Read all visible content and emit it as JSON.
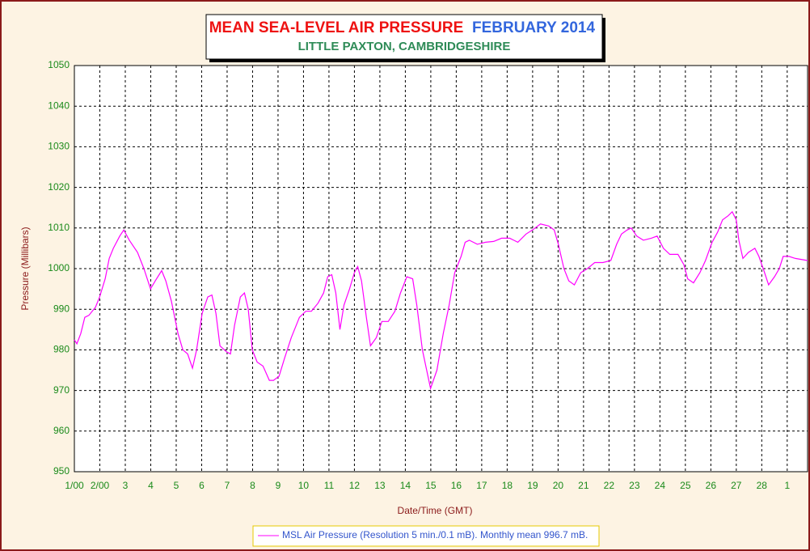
{
  "chart_data": {
    "type": "line",
    "title": "MEAN SEA-LEVEL AIR PRESSURE",
    "title_period": "FEBRUARY 2014",
    "subtitle": "LITTLE PAXTON, CAMBRIDGESHIRE",
    "x_label": "Date/Time (GMT)",
    "y_label": "Pressure (Millibars)",
    "xlim": [
      1,
      29.8
    ],
    "xticks": [
      {
        "value": 1,
        "label": "1/00"
      },
      {
        "value": 2,
        "label": "2/00"
      },
      3,
      4,
      5,
      6,
      7,
      8,
      9,
      10,
      11,
      12,
      13,
      14,
      15,
      16,
      17,
      18,
      19,
      20,
      21,
      22,
      23,
      24,
      25,
      26,
      27,
      28,
      {
        "value": 29,
        "label": "1"
      }
    ],
    "ylim": [
      950,
      1050
    ],
    "yticks": [
      950,
      960,
      970,
      980,
      990,
      1000,
      1010,
      1020,
      1030,
      1040,
      1050
    ],
    "grid": true,
    "legend": "bottom",
    "x": [
      1.0,
      1.1,
      1.25,
      1.41,
      1.57,
      1.83,
      1.99,
      2.21,
      2.37,
      2.53,
      2.78,
      2.94,
      3.16,
      3.48,
      3.73,
      3.99,
      4.18,
      4.43,
      4.59,
      4.81,
      5.07,
      5.26,
      5.45,
      5.64,
      5.8,
      6.02,
      6.24,
      6.4,
      6.56,
      6.72,
      6.98,
      7.13,
      7.29,
      7.52,
      7.68,
      7.83,
      7.99,
      8.18,
      8.41,
      8.66,
      8.82,
      9.04,
      9.26,
      9.52,
      9.84,
      10.09,
      10.31,
      10.57,
      10.79,
      10.95,
      11.11,
      11.27,
      11.43,
      11.59,
      11.81,
      12.0,
      12.13,
      12.28,
      12.47,
      12.63,
      12.86,
      13.08,
      13.33,
      13.59,
      13.81,
      14.06,
      14.29,
      14.45,
      14.67,
      14.99,
      15.24,
      15.49,
      15.72,
      15.94,
      16.19,
      16.35,
      16.51,
      16.83,
      17.15,
      17.47,
      17.78,
      18.1,
      18.42,
      18.74,
      18.99,
      19.31,
      19.63,
      19.85,
      20.01,
      20.23,
      20.42,
      20.64,
      20.89,
      21.15,
      21.44,
      21.76,
      22.07,
      22.3,
      22.49,
      22.71,
      22.87,
      23.09,
      23.35,
      23.66,
      23.89,
      24.14,
      24.39,
      24.71,
      24.94,
      25.09,
      25.32,
      25.57,
      25.79,
      26.05,
      26.27,
      26.46,
      26.68,
      26.84,
      27.0,
      27.1,
      27.26,
      27.48,
      27.73,
      27.89,
      28.11,
      28.27,
      28.5,
      28.69,
      28.84,
      29.07,
      29.32,
      29.8
    ],
    "series": [
      {
        "name": "MSL Air Pressure (Resolution 5 min./0.1 mB). Monthly mean 996.7 mB.",
        "color": "#ff00ff",
        "values": [
          982.5,
          981.5,
          984,
          988,
          988.5,
          990.5,
          993,
          997.5,
          1002.5,
          1005,
          1008,
          1009.5,
          1007,
          1004,
          1000,
          995,
          997,
          999.5,
          997,
          992,
          984,
          980,
          979,
          975.5,
          980,
          989,
          993,
          993.5,
          989,
          981,
          979.5,
          979,
          986,
          993,
          994,
          990,
          980,
          977,
          976,
          972.5,
          972.5,
          973.5,
          978,
          983,
          988,
          989.5,
          989.5,
          991.5,
          994,
          998,
          998.5,
          994,
          985,
          991,
          995,
          999,
          1000.5,
          997,
          988,
          981,
          983,
          987,
          987,
          989.5,
          994,
          998,
          997.5,
          991,
          980,
          970.5,
          975,
          984,
          991,
          999,
          1003,
          1006.5,
          1007,
          1006,
          1006.5,
          1006.7,
          1007.5,
          1007.5,
          1006.5,
          1008.5,
          1009.5,
          1011,
          1010.5,
          1009.5,
          1006,
          1000,
          997,
          996,
          999,
          1000,
          1001.5,
          1001.5,
          1002,
          1006,
          1008.5,
          1009.5,
          1010,
          1008,
          1007,
          1007.5,
          1008,
          1005,
          1003.5,
          1003.5,
          1001,
          997.5,
          996.5,
          999,
          1002,
          1006.5,
          1009,
          1012,
          1013,
          1014,
          1012,
          1007,
          1002.5,
          1004,
          1005,
          1003,
          999,
          996,
          998,
          1000,
          1003,
          1003,
          1002.5,
          1002
        ]
      }
    ]
  }
}
